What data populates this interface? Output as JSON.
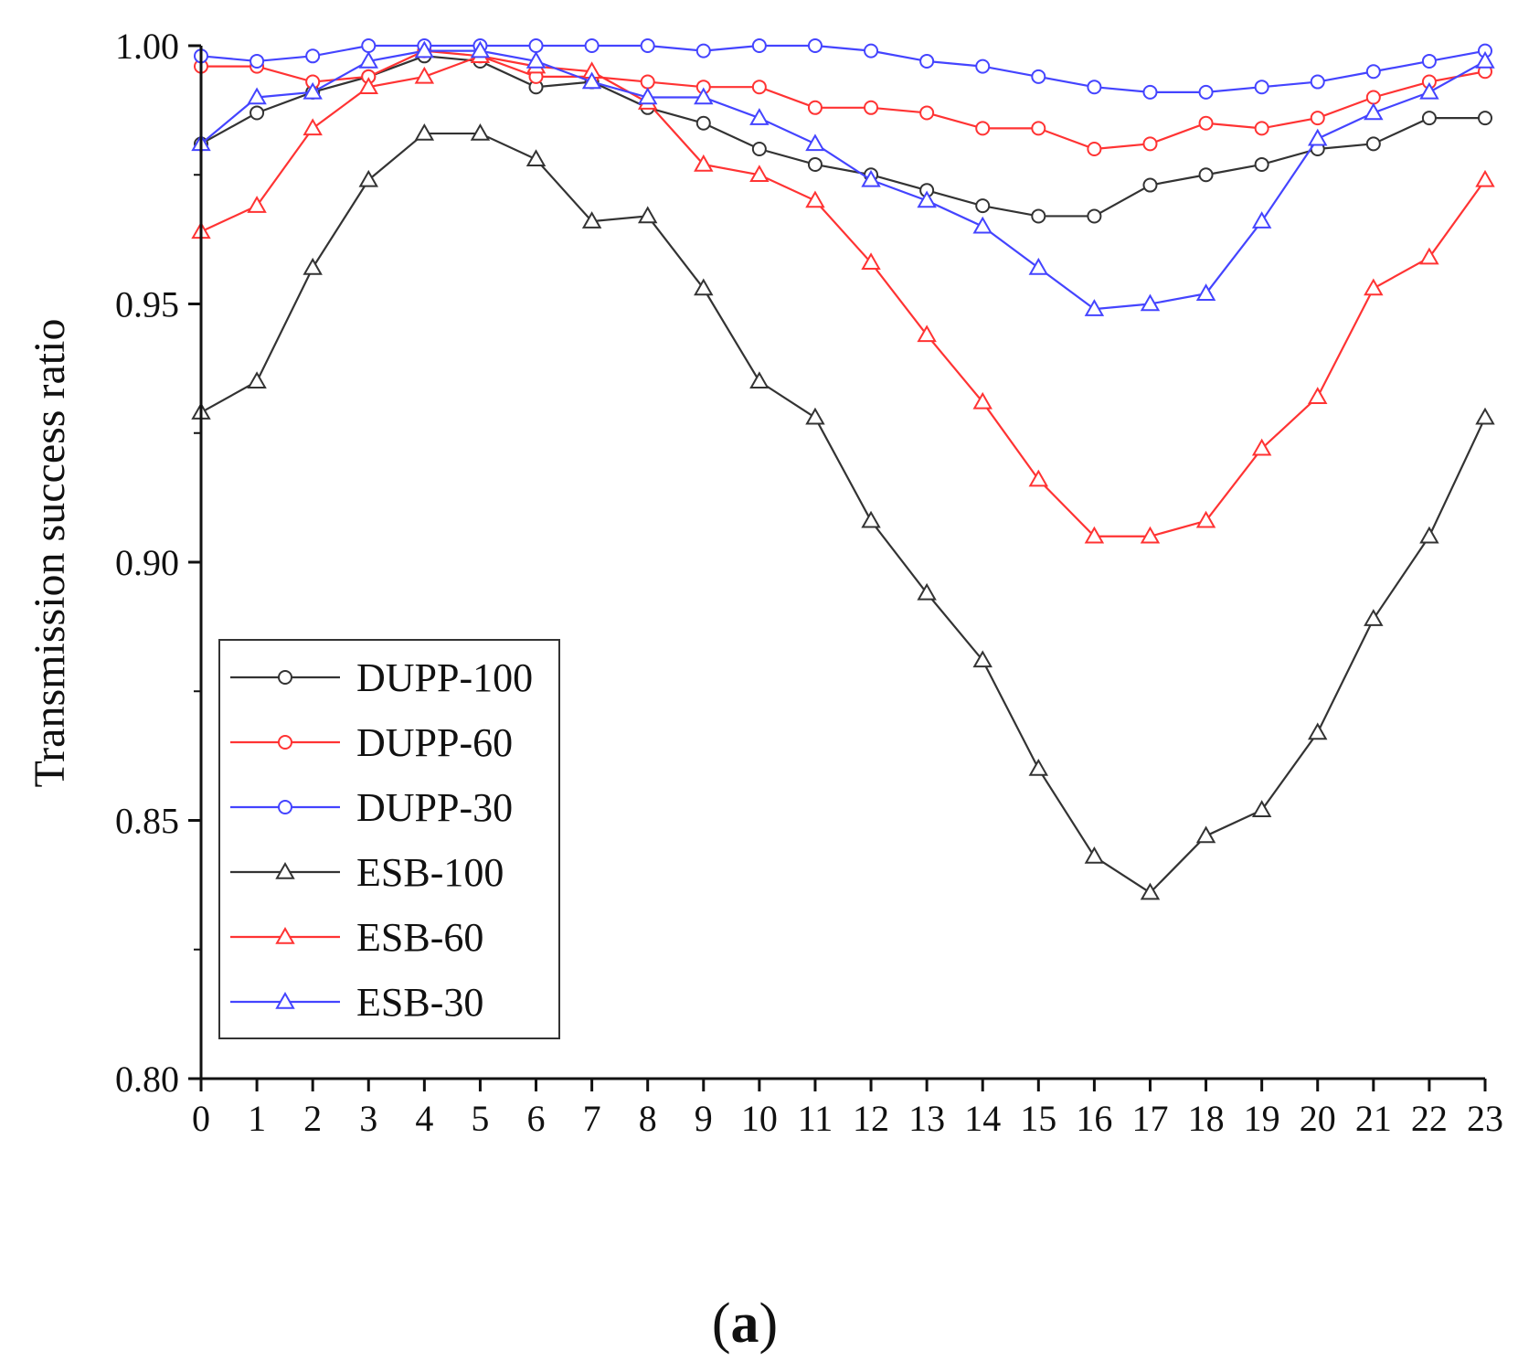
{
  "chart_data": {
    "type": "line",
    "title": "",
    "xlabel": "",
    "ylabel": "Transmission success ratio",
    "panel_label": {
      "open": "(",
      "letter": "a",
      "close": ")"
    },
    "xlim": [
      0,
      23
    ],
    "ylim": [
      0.8,
      1.0
    ],
    "x": [
      0,
      1,
      2,
      3,
      4,
      5,
      6,
      7,
      8,
      9,
      10,
      11,
      12,
      13,
      14,
      15,
      16,
      17,
      18,
      19,
      20,
      21,
      22,
      23
    ],
    "x_tick_labels": [
      "0",
      "1",
      "2",
      "3",
      "4",
      "5",
      "6",
      "7",
      "8",
      "9",
      "10",
      "11",
      "12",
      "13",
      "14",
      "15",
      "16",
      "17",
      "18",
      "19",
      "20",
      "21",
      "22",
      "23"
    ],
    "y_ticks": [
      0.8,
      0.85,
      0.9,
      0.95,
      1.0
    ],
    "y_tick_labels": [
      "0.80",
      "0.85",
      "0.90",
      "0.95",
      "1.00"
    ],
    "legend_position": "bottom-left",
    "series": [
      {
        "name": "DUPP-100",
        "color": "#333333",
        "marker": "circle",
        "values": [
          0.981,
          0.987,
          0.991,
          0.994,
          0.998,
          0.997,
          0.992,
          0.993,
          0.988,
          0.985,
          0.98,
          0.977,
          0.975,
          0.972,
          0.969,
          0.967,
          0.967,
          0.973,
          0.975,
          0.977,
          0.98,
          0.981,
          0.986,
          0.986
        ]
      },
      {
        "name": "DUPP-60",
        "color": "#ff3333",
        "marker": "circle",
        "values": [
          0.996,
          0.996,
          0.993,
          0.994,
          0.999,
          0.998,
          0.994,
          0.994,
          0.993,
          0.992,
          0.992,
          0.988,
          0.988,
          0.987,
          0.984,
          0.984,
          0.98,
          0.981,
          0.985,
          0.984,
          0.986,
          0.99,
          0.993,
          0.995
        ]
      },
      {
        "name": "DUPP-30",
        "color": "#4444ff",
        "marker": "circle",
        "values": [
          0.998,
          0.997,
          0.998,
          1.0,
          1.0,
          1.0,
          1.0,
          1.0,
          1.0,
          0.999,
          1.0,
          1.0,
          0.999,
          0.997,
          0.996,
          0.994,
          0.992,
          0.991,
          0.991,
          0.992,
          0.993,
          0.995,
          0.997,
          0.999
        ]
      },
      {
        "name": "ESB-100",
        "color": "#333333",
        "marker": "triangle",
        "values": [
          0.929,
          0.935,
          0.957,
          0.974,
          0.983,
          0.983,
          0.978,
          0.966,
          0.967,
          0.953,
          0.935,
          0.928,
          0.908,
          0.894,
          0.881,
          0.86,
          0.843,
          0.836,
          0.847,
          0.852,
          0.867,
          0.889,
          0.905,
          0.928
        ]
      },
      {
        "name": "ESB-60",
        "color": "#ff3333",
        "marker": "triangle",
        "values": [
          0.964,
          0.969,
          0.984,
          0.992,
          0.994,
          0.998,
          0.996,
          0.995,
          0.989,
          0.977,
          0.975,
          0.97,
          0.958,
          0.944,
          0.931,
          0.916,
          0.905,
          0.905,
          0.908,
          0.922,
          0.932,
          0.953,
          0.959,
          0.974
        ]
      },
      {
        "name": "ESB-30",
        "color": "#4444ff",
        "marker": "triangle",
        "values": [
          0.981,
          0.99,
          0.991,
          0.997,
          0.999,
          0.999,
          0.997,
          0.993,
          0.99,
          0.99,
          0.986,
          0.981,
          0.974,
          0.97,
          0.965,
          0.957,
          0.949,
          0.95,
          0.952,
          0.966,
          0.982,
          0.987,
          0.991,
          0.997
        ]
      }
    ]
  }
}
